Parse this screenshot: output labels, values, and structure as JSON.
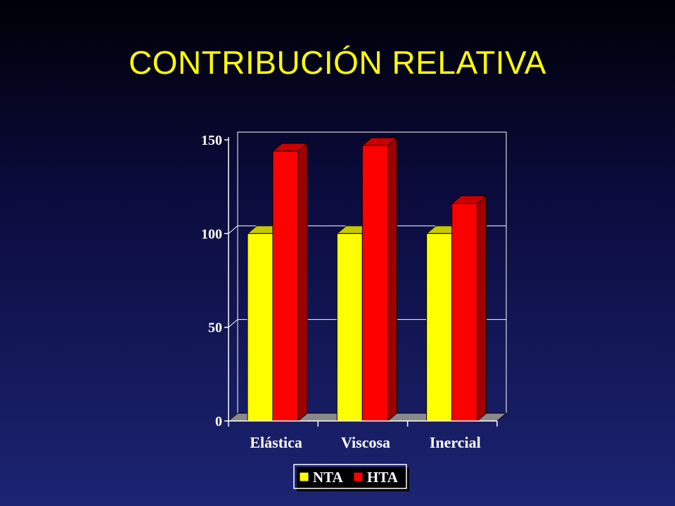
{
  "slide": {
    "title": "CONTRIBUCIÓN RELATIVA"
  },
  "colors": {
    "background_top": "#000006",
    "background_bottom": "#1c2472",
    "title": "#ffff00",
    "nta_front": "#ffff00",
    "nta_top": "#c8c800",
    "nta_side": "#a0a000",
    "hta_front": "#ff0000",
    "hta_top": "#c80000",
    "hta_side": "#a00000",
    "floor": "#8a8a8a",
    "axis_text": "#ffffff"
  },
  "chart_data": {
    "type": "bar",
    "title": "",
    "xlabel": "",
    "ylabel": "",
    "categories": [
      "Elástica",
      "Viscosa",
      "Inercial"
    ],
    "series": [
      {
        "name": "NTA",
        "values": [
          100,
          100,
          100
        ]
      },
      {
        "name": "HTA",
        "values": [
          144,
          147,
          116
        ]
      }
    ],
    "ylim": [
      0,
      150
    ],
    "yticks": [
      "0",
      "50",
      "100",
      "150"
    ],
    "grid": true,
    "legend": "bottom-center",
    "style": "3d"
  }
}
